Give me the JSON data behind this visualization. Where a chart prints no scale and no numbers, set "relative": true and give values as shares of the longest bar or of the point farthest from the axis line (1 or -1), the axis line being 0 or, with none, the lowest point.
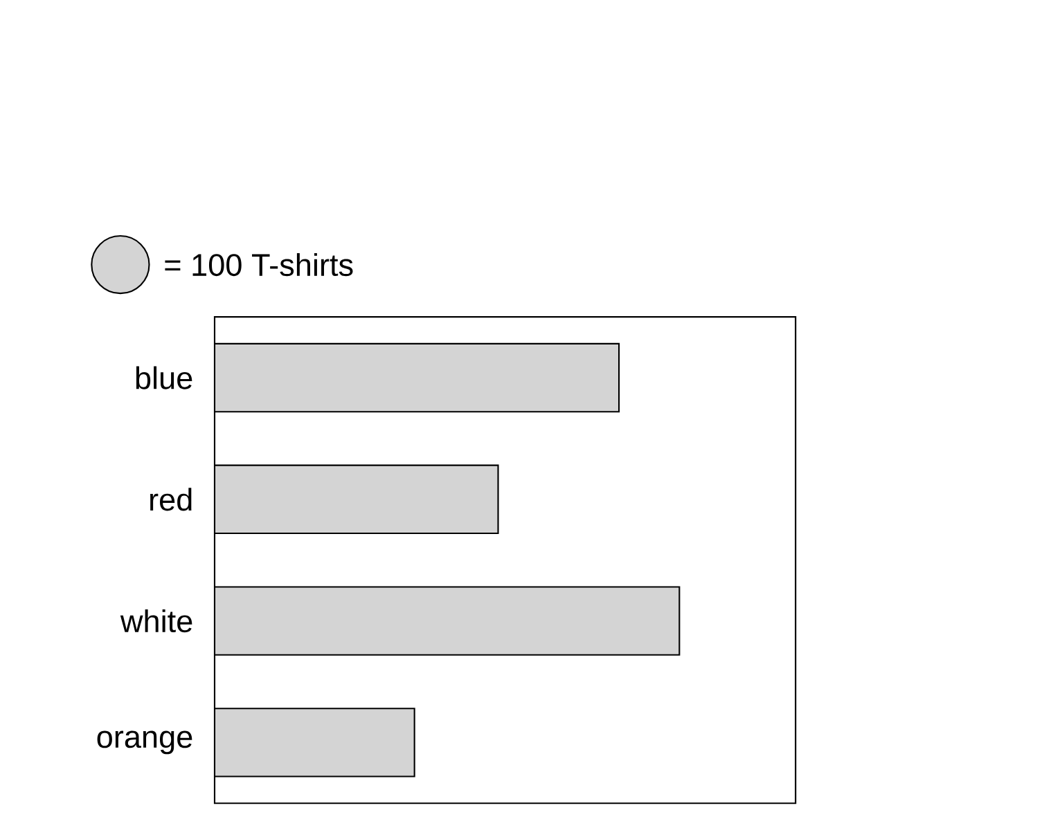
{
  "chart_data": {
    "type": "bar",
    "orientation": "horizontal",
    "relative": true,
    "categories": [
      "blue",
      "red",
      "white",
      "orange"
    ],
    "values": [
      0.87,
      0.61,
      1,
      0.43
    ],
    "color": "#d4d4d4",
    "annotations": [
      "= 100 T-shirts"
    ]
  }
}
